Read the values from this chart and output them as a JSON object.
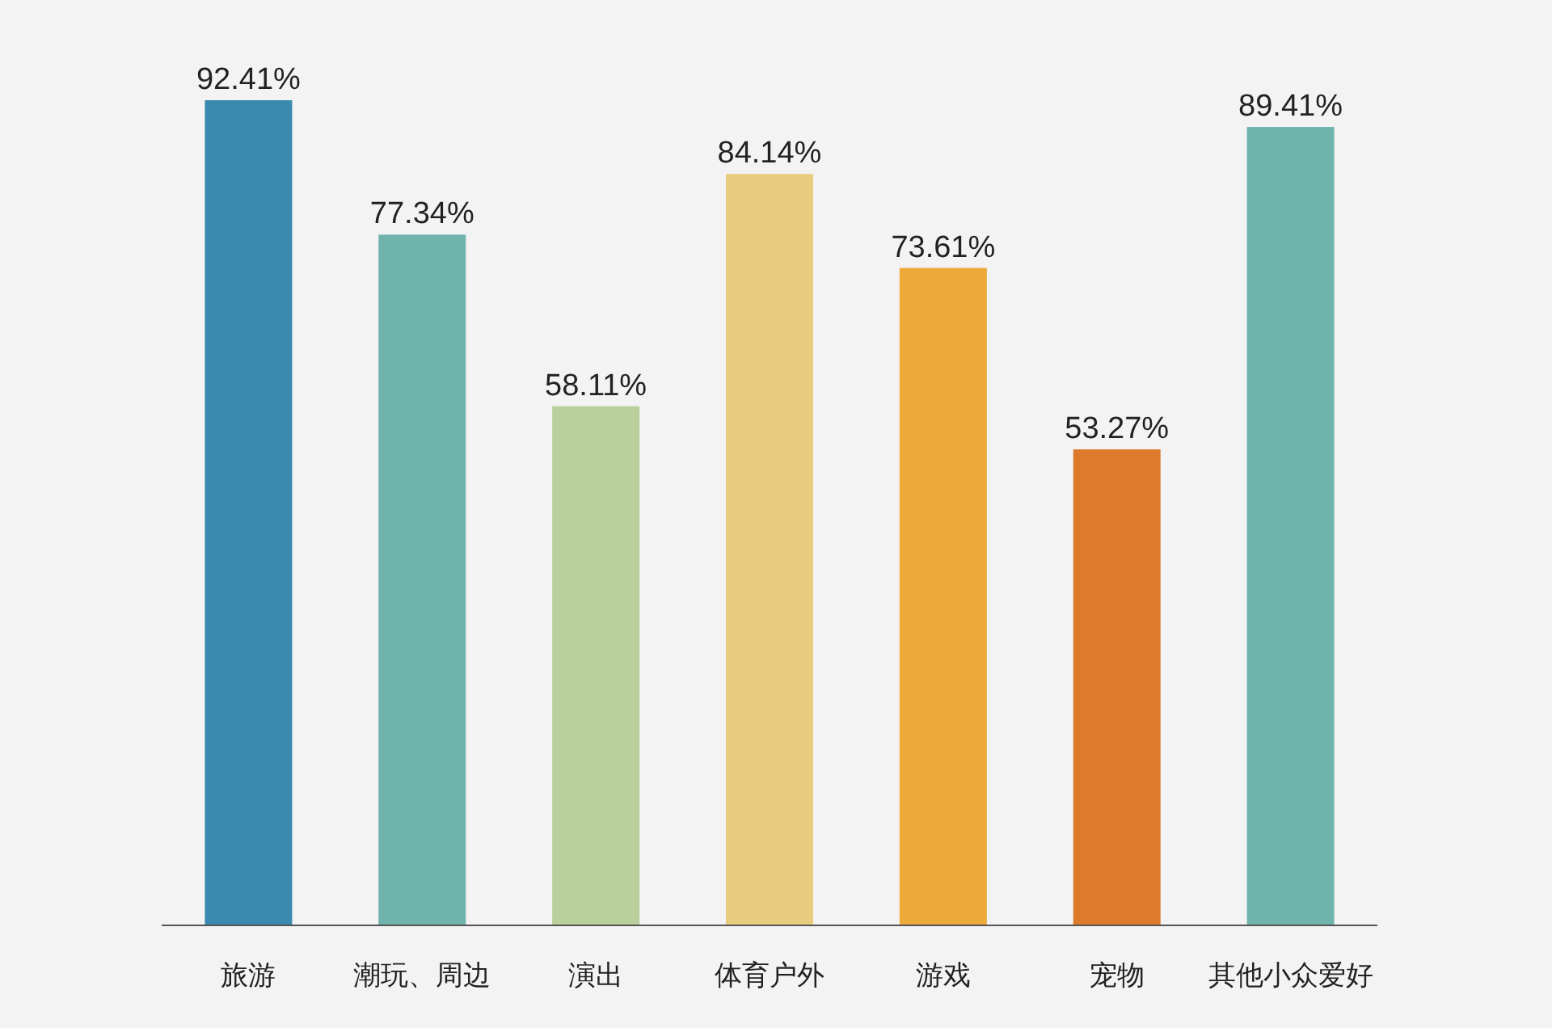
{
  "chart_data": {
    "type": "bar",
    "categories": [
      "旅游",
      "潮玩、周边",
      "演出",
      "体育户外",
      "游戏",
      "宠物",
      "其他小众爱好"
    ],
    "values": [
      92.41,
      77.34,
      58.11,
      84.14,
      73.61,
      53.27,
      89.41
    ],
    "colors": [
      "#3a8ab0",
      "#6fb3ad",
      "#b9cf9c",
      "#e9cd7f",
      "#eea93b",
      "#de7b2b",
      "#6fb3ad"
    ],
    "value_labels": [
      "92.41%",
      "77.34%",
      "58.11%",
      "84.14%",
      "73.61%",
      "53.27%",
      "89.41%"
    ]
  }
}
